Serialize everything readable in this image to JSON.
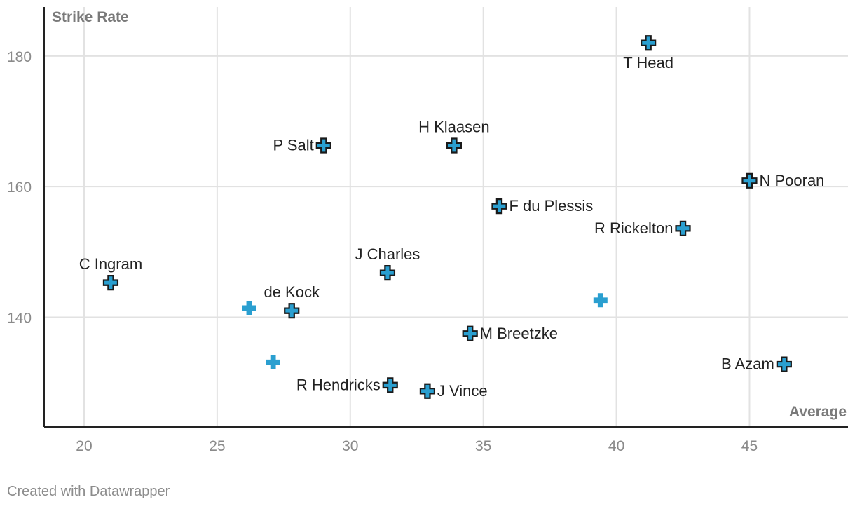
{
  "chart_data": {
    "type": "scatter",
    "xlabel": "Average",
    "ylabel": "Strike Rate",
    "xlim": [
      18.5,
      48.7
    ],
    "ylim": [
      123.2,
      187.5
    ],
    "xticks": [
      20,
      25,
      30,
      35,
      40,
      45
    ],
    "yticks": [
      140,
      160,
      180
    ],
    "grid": true,
    "marker_color": "#2a9fd0",
    "outline_color": "#1a1a1a",
    "points": [
      {
        "x": 41.2,
        "y": 182.0,
        "label": "T Head",
        "outlined": true,
        "label_pos": "below"
      },
      {
        "x": 29.0,
        "y": 166.3,
        "label": "P Salt",
        "outlined": true,
        "label_pos": "left"
      },
      {
        "x": 33.9,
        "y": 166.3,
        "label": "H Klaasen",
        "outlined": true,
        "label_pos": "above"
      },
      {
        "x": 45.0,
        "y": 160.9,
        "label": "N Pooran",
        "outlined": true,
        "label_pos": "right"
      },
      {
        "x": 35.6,
        "y": 157.0,
        "label": "F du Plessis",
        "outlined": true,
        "label_pos": "right"
      },
      {
        "x": 42.5,
        "y": 153.6,
        "label": "R Rickelton",
        "outlined": true,
        "label_pos": "left"
      },
      {
        "x": 21.0,
        "y": 145.3,
        "label": "C Ingram",
        "outlined": true,
        "label_pos": "above"
      },
      {
        "x": 31.4,
        "y": 146.8,
        "label": "J Charles",
        "outlined": true,
        "label_pos": "above"
      },
      {
        "x": 27.8,
        "y": 141.0,
        "label": "de Kock",
        "outlined": true,
        "label_pos": "above"
      },
      {
        "x": 26.2,
        "y": 141.4,
        "label": "",
        "outlined": false,
        "label_pos": "none"
      },
      {
        "x": 39.4,
        "y": 142.6,
        "label": "",
        "outlined": false,
        "label_pos": "none"
      },
      {
        "x": 34.5,
        "y": 137.5,
        "label": "M Breetzke",
        "outlined": true,
        "label_pos": "right"
      },
      {
        "x": 27.1,
        "y": 133.1,
        "label": "",
        "outlined": false,
        "label_pos": "none"
      },
      {
        "x": 46.3,
        "y": 132.8,
        "label": "B Azam",
        "outlined": true,
        "label_pos": "left"
      },
      {
        "x": 31.5,
        "y": 129.6,
        "label": "R Hendricks",
        "outlined": true,
        "label_pos": "left"
      },
      {
        "x": 32.9,
        "y": 128.7,
        "label": "J Vince",
        "outlined": true,
        "label_pos": "right"
      }
    ]
  },
  "footer": {
    "credit": "Created with Datawrapper"
  }
}
